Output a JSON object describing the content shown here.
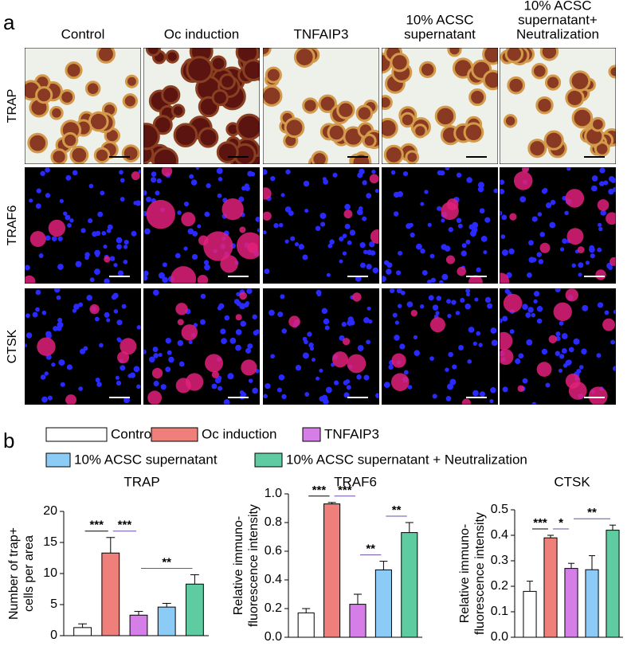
{
  "panel_a": {
    "label": "a",
    "columns": [
      [
        "Control"
      ],
      [
        "Oc induction"
      ],
      [
        "TNFAIP3"
      ],
      [
        "10% ACSC",
        "supernatant"
      ],
      [
        "10% ACSC",
        "supernatant+",
        "Neutralization"
      ]
    ],
    "rows": [
      "TRAP",
      "TRAF6",
      "CTSK"
    ]
  },
  "panel_b": {
    "label": "b"
  },
  "chart_data": [
    {
      "type": "bar",
      "title": "TRAP",
      "ylabel": [
        "Number of trap+",
        "cells per area"
      ],
      "categories": [
        "Control",
        "Oc induction",
        "TNFAIP3",
        "10% ACSC supernatant",
        "10% ACSC supernatant + Neutralization"
      ],
      "colors": [
        "#ffffff",
        "#ef7f7b",
        "#d67ee8",
        "#8ccbf6",
        "#5fcba0"
      ],
      "values": [
        1.3,
        13.3,
        3.3,
        4.6,
        8.3
      ],
      "errors": [
        0.6,
        2.5,
        0.6,
        0.6,
        1.5
      ],
      "ylim": [
        0,
        20
      ],
      "yticks": [
        0,
        5,
        10,
        15,
        20
      ],
      "annotations": [
        {
          "label": "***",
          "between": [
            "Control",
            "Oc induction"
          ]
        },
        {
          "label": "***",
          "between": [
            "Oc induction",
            "TNFAIP3"
          ]
        },
        {
          "label": "**",
          "between": [
            "TNFAIP3",
            "10% ACSC supernatant + Neutralization"
          ]
        }
      ]
    },
    {
      "type": "bar",
      "title": "TRAF6",
      "ylabel": [
        "Relative immuno-",
        "fluorescence intensity"
      ],
      "categories": [
        "Control",
        "Oc induction",
        "TNFAIP3",
        "10% ACSC supernatant",
        "10% ACSC supernatant + Neutralization"
      ],
      "colors": [
        "#ffffff",
        "#ef7f7b",
        "#d67ee8",
        "#8ccbf6",
        "#5fcba0"
      ],
      "values": [
        0.17,
        0.93,
        0.23,
        0.47,
        0.73
      ],
      "errors": [
        0.03,
        0.01,
        0.07,
        0.06,
        0.07
      ],
      "ylim": [
        0,
        1
      ],
      "yticks": [
        {
          "value": 0,
          "label": "0.0"
        },
        0.2,
        0.4,
        0.6,
        0.8,
        {
          "value": 1,
          "label": "1.0"
        }
      ],
      "annotations": [
        {
          "label": "***",
          "between": [
            "Control",
            "Oc induction"
          ]
        },
        {
          "label": "***",
          "between": [
            "Oc induction",
            "TNFAIP3"
          ]
        },
        {
          "label": "**",
          "between": [
            "TNFAIP3",
            "10% ACSC supernatant"
          ]
        },
        {
          "label": "**",
          "between": [
            "10% ACSC supernatant",
            "10% ACSC supernatant + Neutralization"
          ]
        }
      ]
    },
    {
      "type": "bar",
      "title": "CTSK",
      "ylabel": [
        "Relative immuno-",
        "fluorescence intensity"
      ],
      "categories": [
        "Control",
        "Oc induction",
        "TNFAIP3",
        "10% ACSC supernatant",
        "10% ACSC supernatant + Neutralization"
      ],
      "colors": [
        "#ffffff",
        "#ef7f7b",
        "#d67ee8",
        "#8ccbf6",
        "#5fcba0"
      ],
      "values": [
        0.18,
        0.39,
        0.27,
        0.265,
        0.42
      ],
      "errors": [
        0.04,
        0.01,
        0.02,
        0.055,
        0.02
      ],
      "ylim": [
        0,
        0.5
      ],
      "yticks": [
        {
          "value": 0,
          "label": "0.0"
        },
        0.1,
        0.2,
        0.3,
        0.4,
        0.5
      ],
      "annotations": [
        {
          "label": "***",
          "between": [
            "Control",
            "Oc induction"
          ]
        },
        {
          "label": "*",
          "between": [
            "Oc induction",
            "TNFAIP3"
          ]
        },
        {
          "label": "**",
          "between": [
            "TNFAIP3",
            "10% ACSC supernatant + Neutralization"
          ]
        }
      ]
    }
  ]
}
